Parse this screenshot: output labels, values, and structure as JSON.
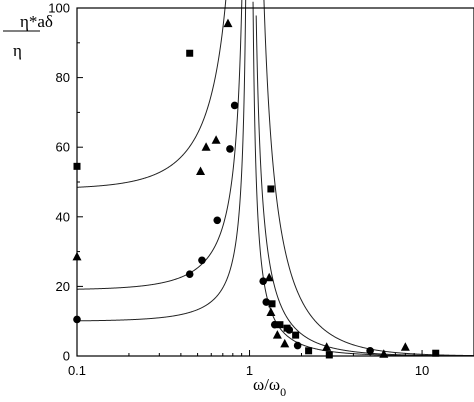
{
  "chart_data": {
    "type": "scatter",
    "xscale": "log",
    "xlim": [
      0.1,
      20
    ],
    "ylim": [
      0,
      100
    ],
    "grid": false,
    "xlabel": "ω/ω",
    "xlabel_sub": "0",
    "ylabel_num": "η*aδ",
    "ylabel_den": "η",
    "x_ticks": [
      {
        "value": 0.1,
        "label": "0.1"
      },
      {
        "value": 1,
        "label": "1"
      },
      {
        "value": 10,
        "label": "10"
      }
    ],
    "y_ticks": [
      {
        "value": 0,
        "label": "0"
      },
      {
        "value": 20,
        "label": "20"
      },
      {
        "value": 40,
        "label": "40"
      },
      {
        "value": 60,
        "label": "60"
      },
      {
        "value": 80,
        "label": "80"
      },
      {
        "value": 100,
        "label": "100"
      }
    ],
    "series": [
      {
        "marker": "square",
        "points": [
          [
            0.1,
            54.5
          ],
          [
            0.45,
            87
          ],
          [
            1.33,
            48
          ],
          [
            1.35,
            15
          ],
          [
            1.5,
            9
          ],
          [
            1.65,
            8
          ],
          [
            1.85,
            6
          ],
          [
            2.2,
            1.5
          ],
          [
            2.9,
            0.3
          ],
          [
            12,
            0.8
          ]
        ]
      },
      {
        "marker": "triangle",
        "points": [
          [
            0.1,
            28.5
          ],
          [
            0.52,
            53
          ],
          [
            0.56,
            60
          ],
          [
            0.64,
            62
          ],
          [
            0.75,
            95.5
          ],
          [
            1.3,
            22.5
          ],
          [
            1.33,
            12.5
          ],
          [
            1.45,
            6
          ],
          [
            1.6,
            3.5
          ],
          [
            2.8,
            2.5
          ],
          [
            6,
            0.5
          ],
          [
            8,
            2.5
          ]
        ]
      },
      {
        "marker": "circle",
        "points": [
          [
            0.1,
            10.5
          ],
          [
            0.45,
            23.5
          ],
          [
            0.53,
            27.5
          ],
          [
            0.65,
            39
          ],
          [
            0.77,
            59.5
          ],
          [
            0.82,
            72
          ],
          [
            1.2,
            21.5
          ],
          [
            1.25,
            15.5
          ],
          [
            1.4,
            9
          ],
          [
            1.7,
            7.5
          ],
          [
            1.9,
            3
          ],
          [
            5,
            1.5
          ]
        ]
      }
    ],
    "curves": [
      {
        "base": 48
      },
      {
        "base": 19
      },
      {
        "base": 10
      }
    ]
  }
}
